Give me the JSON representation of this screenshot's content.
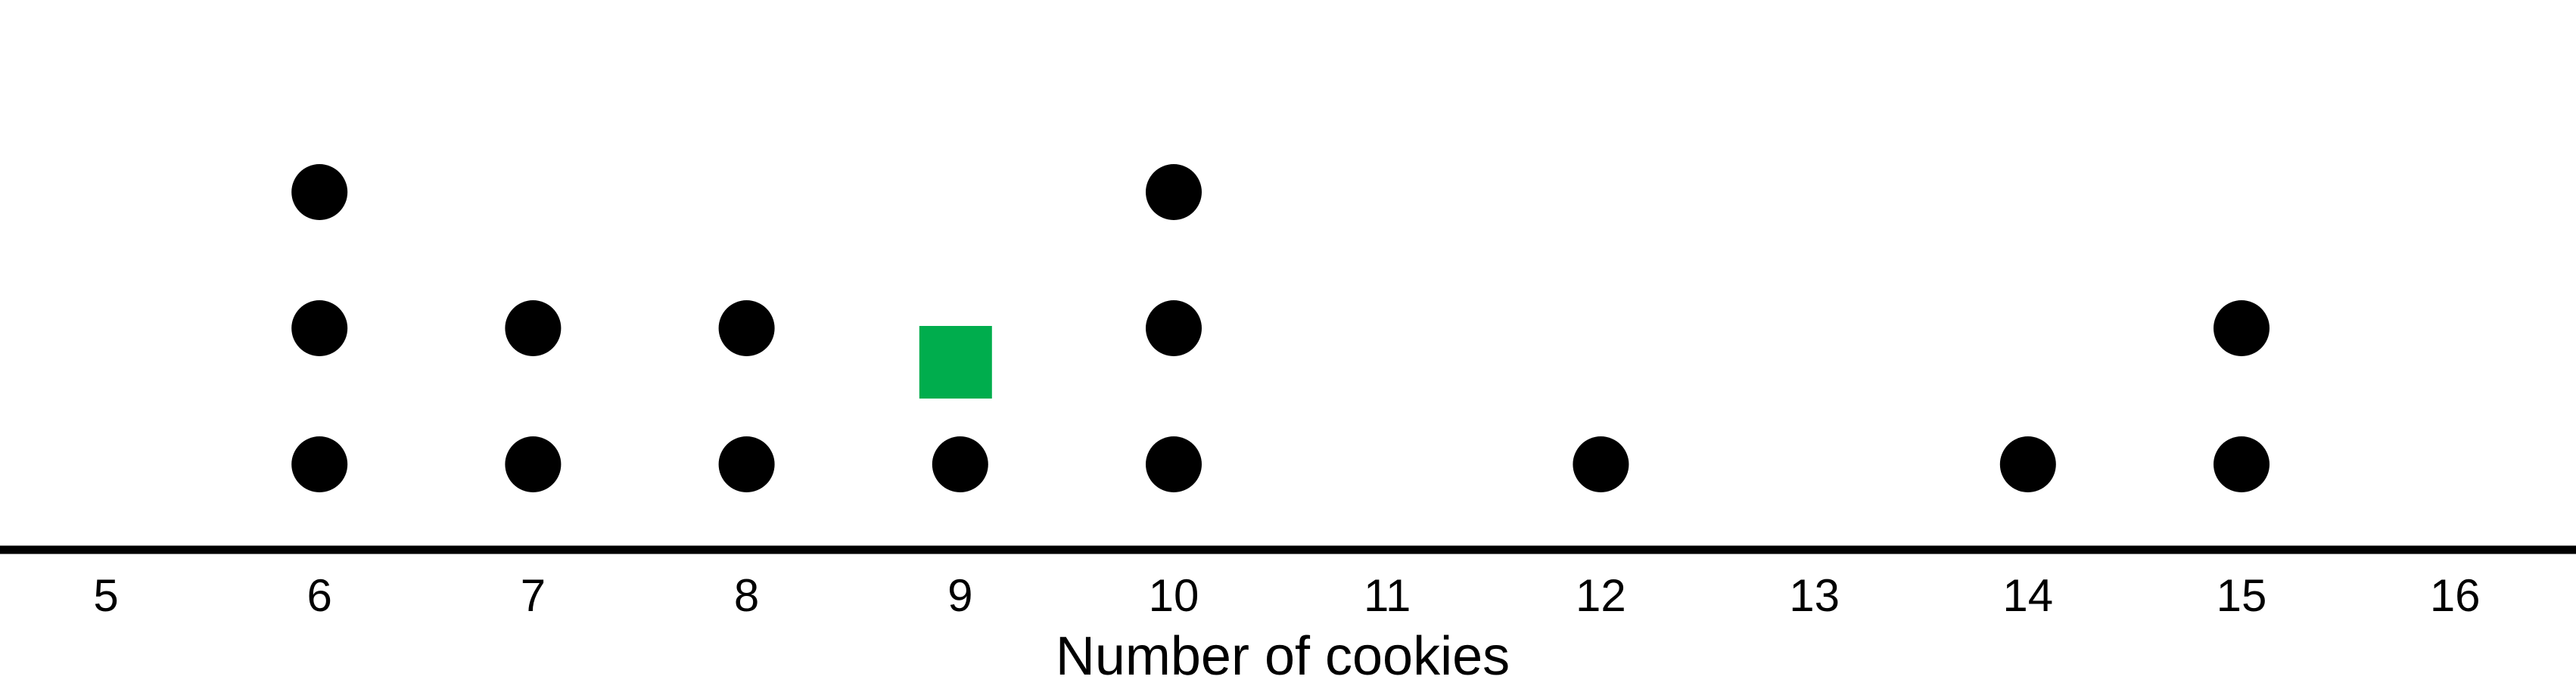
{
  "chart_data": {
    "type": "dot_plot",
    "xlabel": "Number of cookies",
    "xlim": [
      4.5,
      16.55
    ],
    "ticks": [
      5,
      6,
      7,
      8,
      9,
      10,
      11,
      12,
      13,
      14,
      15,
      16
    ],
    "tick_labels": [
      "5",
      "6",
      "7",
      "8",
      "9",
      "10",
      "11",
      "12",
      "13",
      "14",
      "15",
      "16"
    ],
    "points": [
      {
        "x": 6,
        "count": 3
      },
      {
        "x": 7,
        "count": 2
      },
      {
        "x": 8,
        "count": 2
      },
      {
        "x": 9,
        "count": 1
      },
      {
        "x": 10,
        "count": 3
      },
      {
        "x": 12,
        "count": 1
      },
      {
        "x": 14,
        "count": 1
      },
      {
        "x": 15,
        "count": 2
      }
    ],
    "marker": {
      "shape": "square",
      "x": 9,
      "level": 1.75,
      "color": "#00ad4d"
    },
    "dot_color": "#000000",
    "axis_color": "#000000"
  }
}
